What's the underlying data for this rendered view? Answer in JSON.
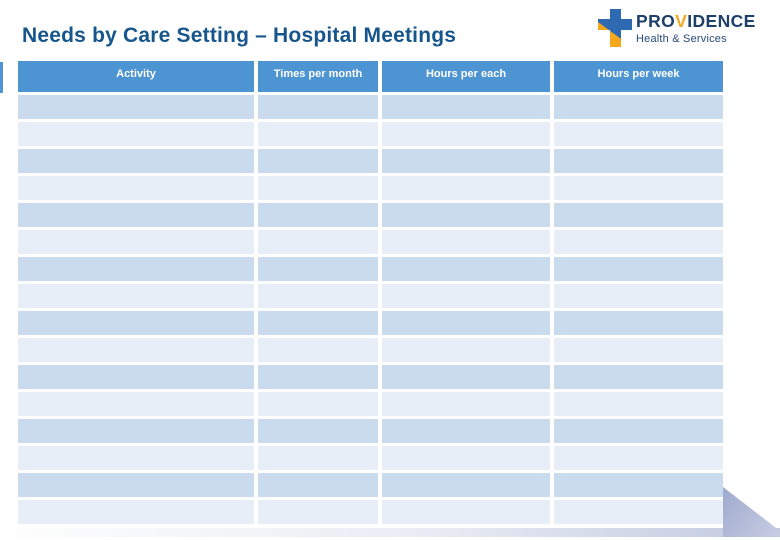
{
  "slide": {
    "title": "Needs by Care Setting – Hospital Meetings"
  },
  "logo": {
    "wordmark_pre": "PRO",
    "wordmark_accent": "V",
    "wordmark_post": "IDENCE",
    "tagline": "Health & Services"
  },
  "colors": {
    "title_text": "#17568C",
    "table_header_bg": "#4C94D2",
    "table_header_text": "#FFFFFF",
    "row_band_dark": "#CBDBEE",
    "row_band_light": "#E8EEF7",
    "logo_navy": "#1F3F6B",
    "logo_orange": "#F6A81C",
    "logo_cross_blue": "#2D6AB2",
    "corner_triangle": "#A6B0D0"
  },
  "table": {
    "columns": [
      {
        "label": "Activity"
      },
      {
        "label": "Times per month"
      },
      {
        "label": "Hours per each"
      },
      {
        "label": "Hours per week"
      }
    ],
    "rows": [
      [
        "",
        "",
        "",
        ""
      ],
      [
        "",
        "",
        "",
        ""
      ],
      [
        "",
        "",
        "",
        ""
      ],
      [
        "",
        "",
        "",
        ""
      ],
      [
        "",
        "",
        "",
        ""
      ],
      [
        "",
        "",
        "",
        ""
      ],
      [
        "",
        "",
        "",
        ""
      ],
      [
        "",
        "",
        "",
        ""
      ],
      [
        "",
        "",
        "",
        ""
      ],
      [
        "",
        "",
        "",
        ""
      ],
      [
        "",
        "",
        "",
        ""
      ],
      [
        "",
        "",
        "",
        ""
      ],
      [
        "",
        "",
        "",
        ""
      ],
      [
        "",
        "",
        "",
        ""
      ],
      [
        "",
        "",
        "",
        ""
      ],
      [
        "",
        "",
        "",
        ""
      ]
    ]
  }
}
